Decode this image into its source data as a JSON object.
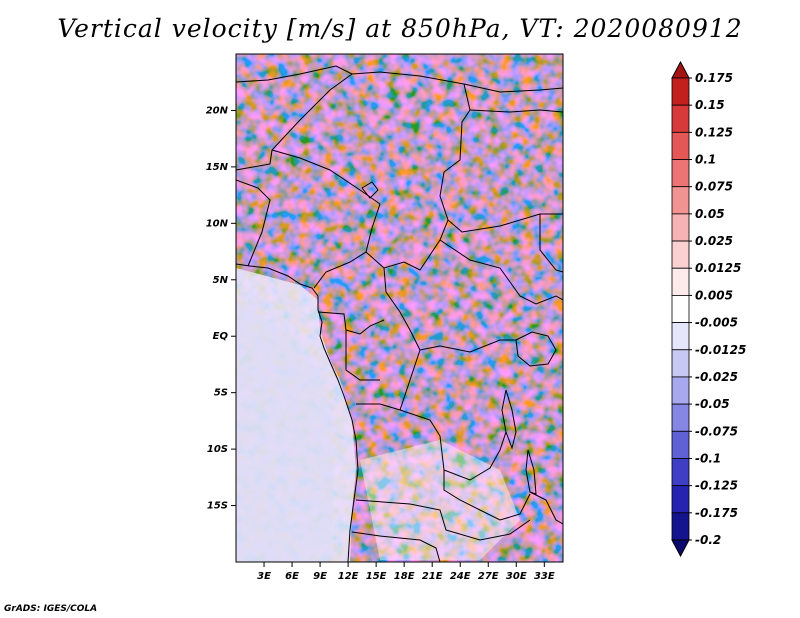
{
  "title": "Vertical velocity [m/s] at 850hPa, VT: 2020080912",
  "credit": "GrADS: IGES/COLA",
  "map": {
    "lon_labels": [
      "3E",
      "6E",
      "9E",
      "12E",
      "15E",
      "18E",
      "21E",
      "24E",
      "27E",
      "30E",
      "33E"
    ],
    "lat_labels": [
      "20N",
      "15N",
      "10N",
      "5N",
      "EQ",
      "5S",
      "10S",
      "15S"
    ],
    "lon_range": [
      0,
      35
    ],
    "lat_range": [
      -20,
      25
    ]
  },
  "colorbar": {
    "labels": [
      "0.175",
      "0.15",
      "0.125",
      "0.1",
      "0.075",
      "0.05",
      "0.025",
      "0.0125",
      "0.005",
      "-0.005",
      "-0.0125",
      "-0.025",
      "-0.05",
      "-0.075",
      "-0.1",
      "-0.125",
      "-0.175",
      "-0.2"
    ],
    "colors": [
      "#a51313",
      "#c41f1f",
      "#d63a3a",
      "#e35757",
      "#ec7474",
      "#f19393",
      "#f6b3b3",
      "#fad0d0",
      "#fdeaea",
      "#ffffff",
      "#e6e6fb",
      "#c8c8f5",
      "#a8a8ee",
      "#8686e4",
      "#6161d6",
      "#3f3fc6",
      "#2424b0",
      "#14148f",
      "#0a0a6e"
    ]
  }
}
